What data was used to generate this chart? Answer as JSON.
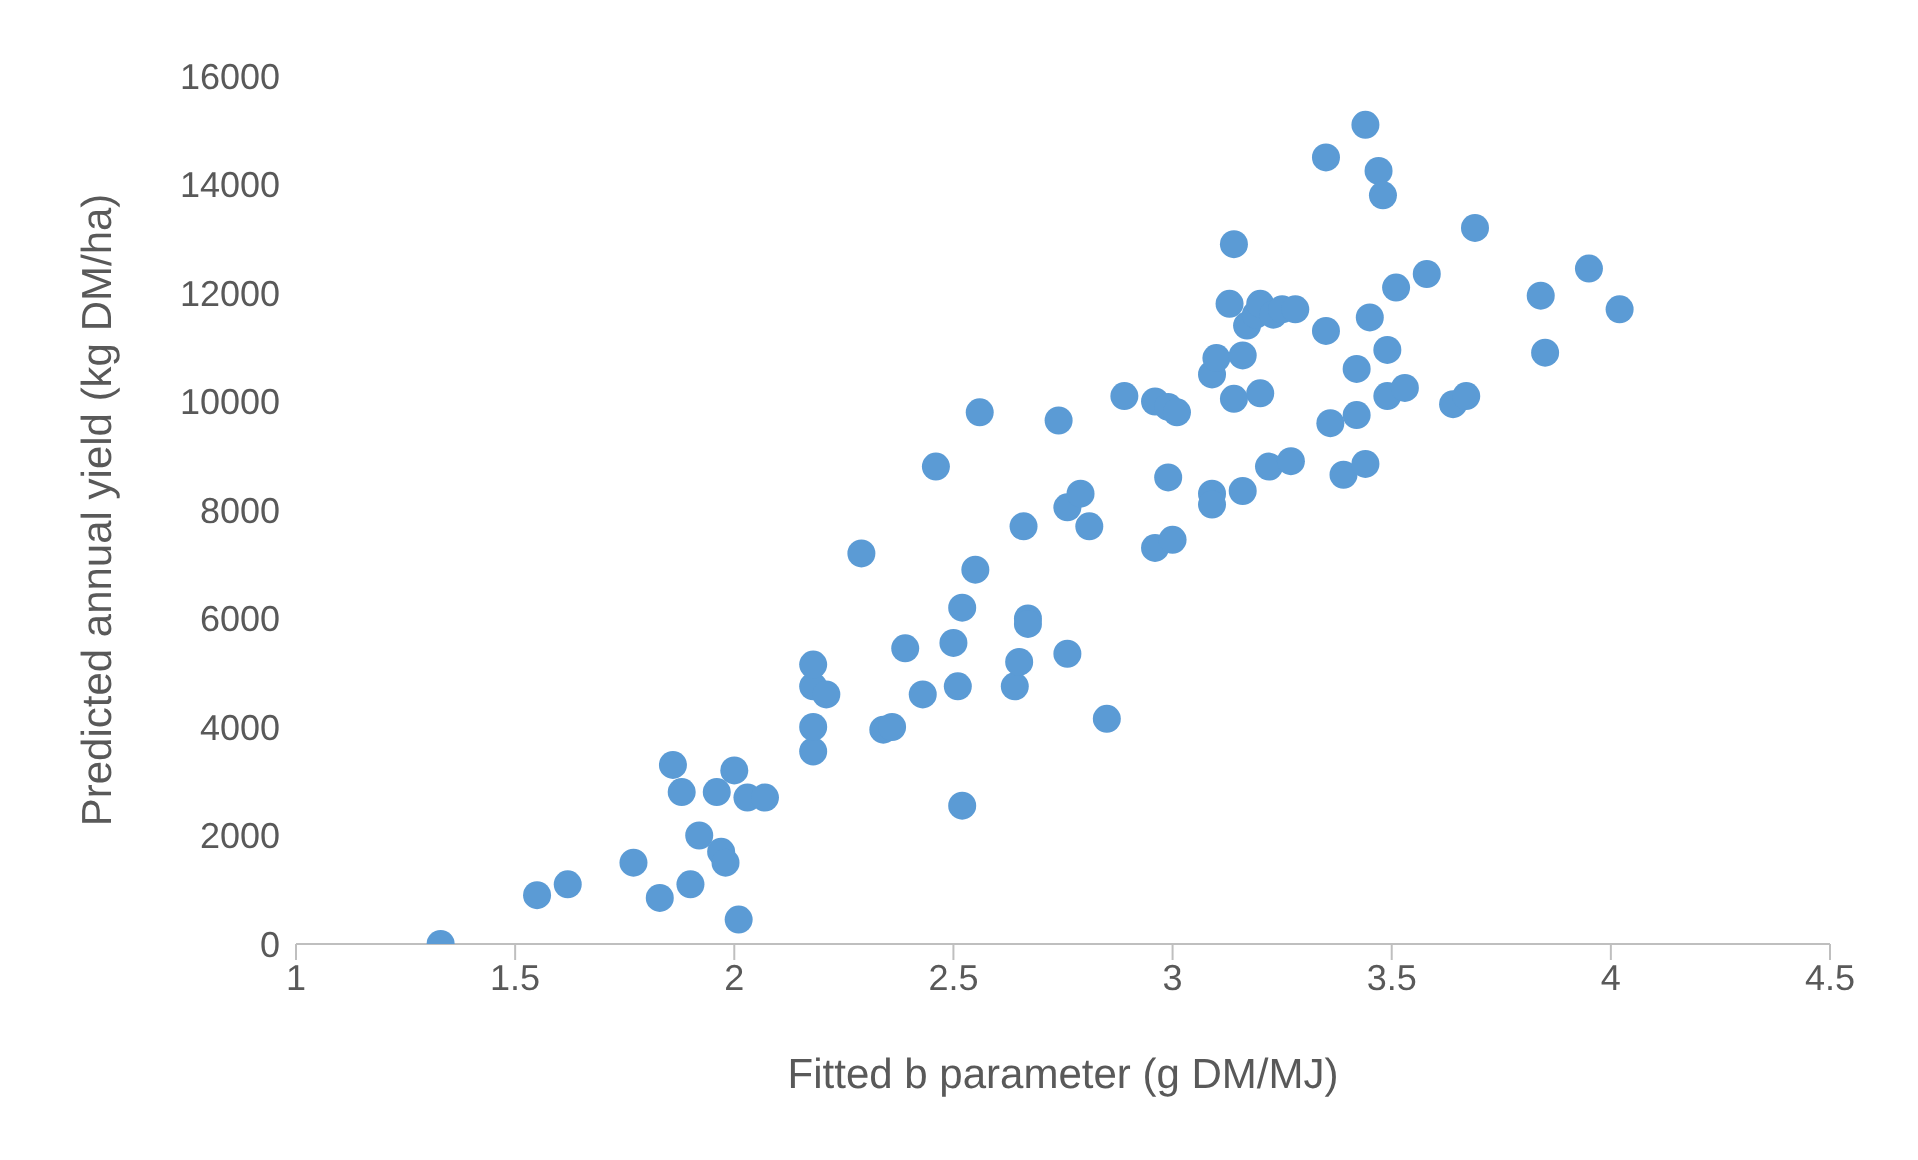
{
  "chart_data": {
    "type": "scatter",
    "xlabel": "Fitted b parameter (g DM/MJ)",
    "ylabel": "Predicted annual yield (kg DM/ha)",
    "xlim": [
      1,
      4.5
    ],
    "xticks": [
      1,
      1.5,
      2,
      2.5,
      3,
      3.5,
      4,
      4.5
    ],
    "ylim": [
      0,
      16000
    ],
    "yticks": [
      0,
      2000,
      4000,
      6000,
      8000,
      10000,
      12000,
      14000,
      16000
    ],
    "grid": false,
    "legend": false,
    "marker": "circle",
    "series": [
      {
        "color": "#5b9bd5",
        "x": [
          1.33,
          1.55,
          1.62,
          1.77,
          1.83,
          1.86,
          1.88,
          1.9,
          1.92,
          1.96,
          1.97,
          1.98,
          2.0,
          2.01,
          2.03,
          2.07,
          2.18,
          2.18,
          2.18,
          2.18,
          2.21,
          2.29,
          2.34,
          2.36,
          2.39,
          2.43,
          2.46,
          2.5,
          2.51,
          2.52,
          2.52,
          2.55,
          2.56,
          2.64,
          2.65,
          2.66,
          2.67,
          2.67,
          2.74,
          2.76,
          2.76,
          2.79,
          2.81,
          2.85,
          2.89,
          2.96,
          2.96,
          2.99,
          2.99,
          3.0,
          3.01,
          3.09,
          3.09,
          3.09,
          3.1,
          3.13,
          3.14,
          3.14,
          3.16,
          3.16,
          3.17,
          3.19,
          3.2,
          3.2,
          3.22,
          3.23,
          3.25,
          3.27,
          3.28,
          3.35,
          3.35,
          3.36,
          3.39,
          3.42,
          3.42,
          3.44,
          3.44,
          3.45,
          3.47,
          3.48,
          3.49,
          3.49,
          3.51,
          3.53,
          3.58,
          3.64,
          3.67,
          3.69,
          3.84,
          3.85,
          3.95,
          4.02
        ],
        "values": [
          0,
          900,
          1100,
          1500,
          850,
          3300,
          2800,
          1100,
          2000,
          2800,
          1700,
          1500,
          3200,
          450,
          2700,
          2700,
          3550,
          4000,
          4750,
          5150,
          4600,
          7200,
          3950,
          4000,
          5450,
          4600,
          8800,
          5550,
          4750,
          6200,
          2550,
          6900,
          9800,
          4750,
          5200,
          7700,
          6000,
          5900,
          9650,
          5350,
          8050,
          8300,
          7700,
          4150,
          10100,
          10000,
          7300,
          9900,
          8600,
          7450,
          9800,
          10500,
          8300,
          8100,
          10800,
          11800,
          12900,
          10050,
          10850,
          8350,
          11400,
          11600,
          10150,
          11800,
          8800,
          11600,
          11700,
          8900,
          11700,
          14500,
          11300,
          9600,
          8650,
          10600,
          9750,
          15100,
          8850,
          11550,
          14250,
          13800,
          10950,
          10100,
          12100,
          10250,
          12350,
          9950,
          10100,
          13200,
          11950,
          10900,
          12450,
          11700
        ]
      }
    ]
  }
}
